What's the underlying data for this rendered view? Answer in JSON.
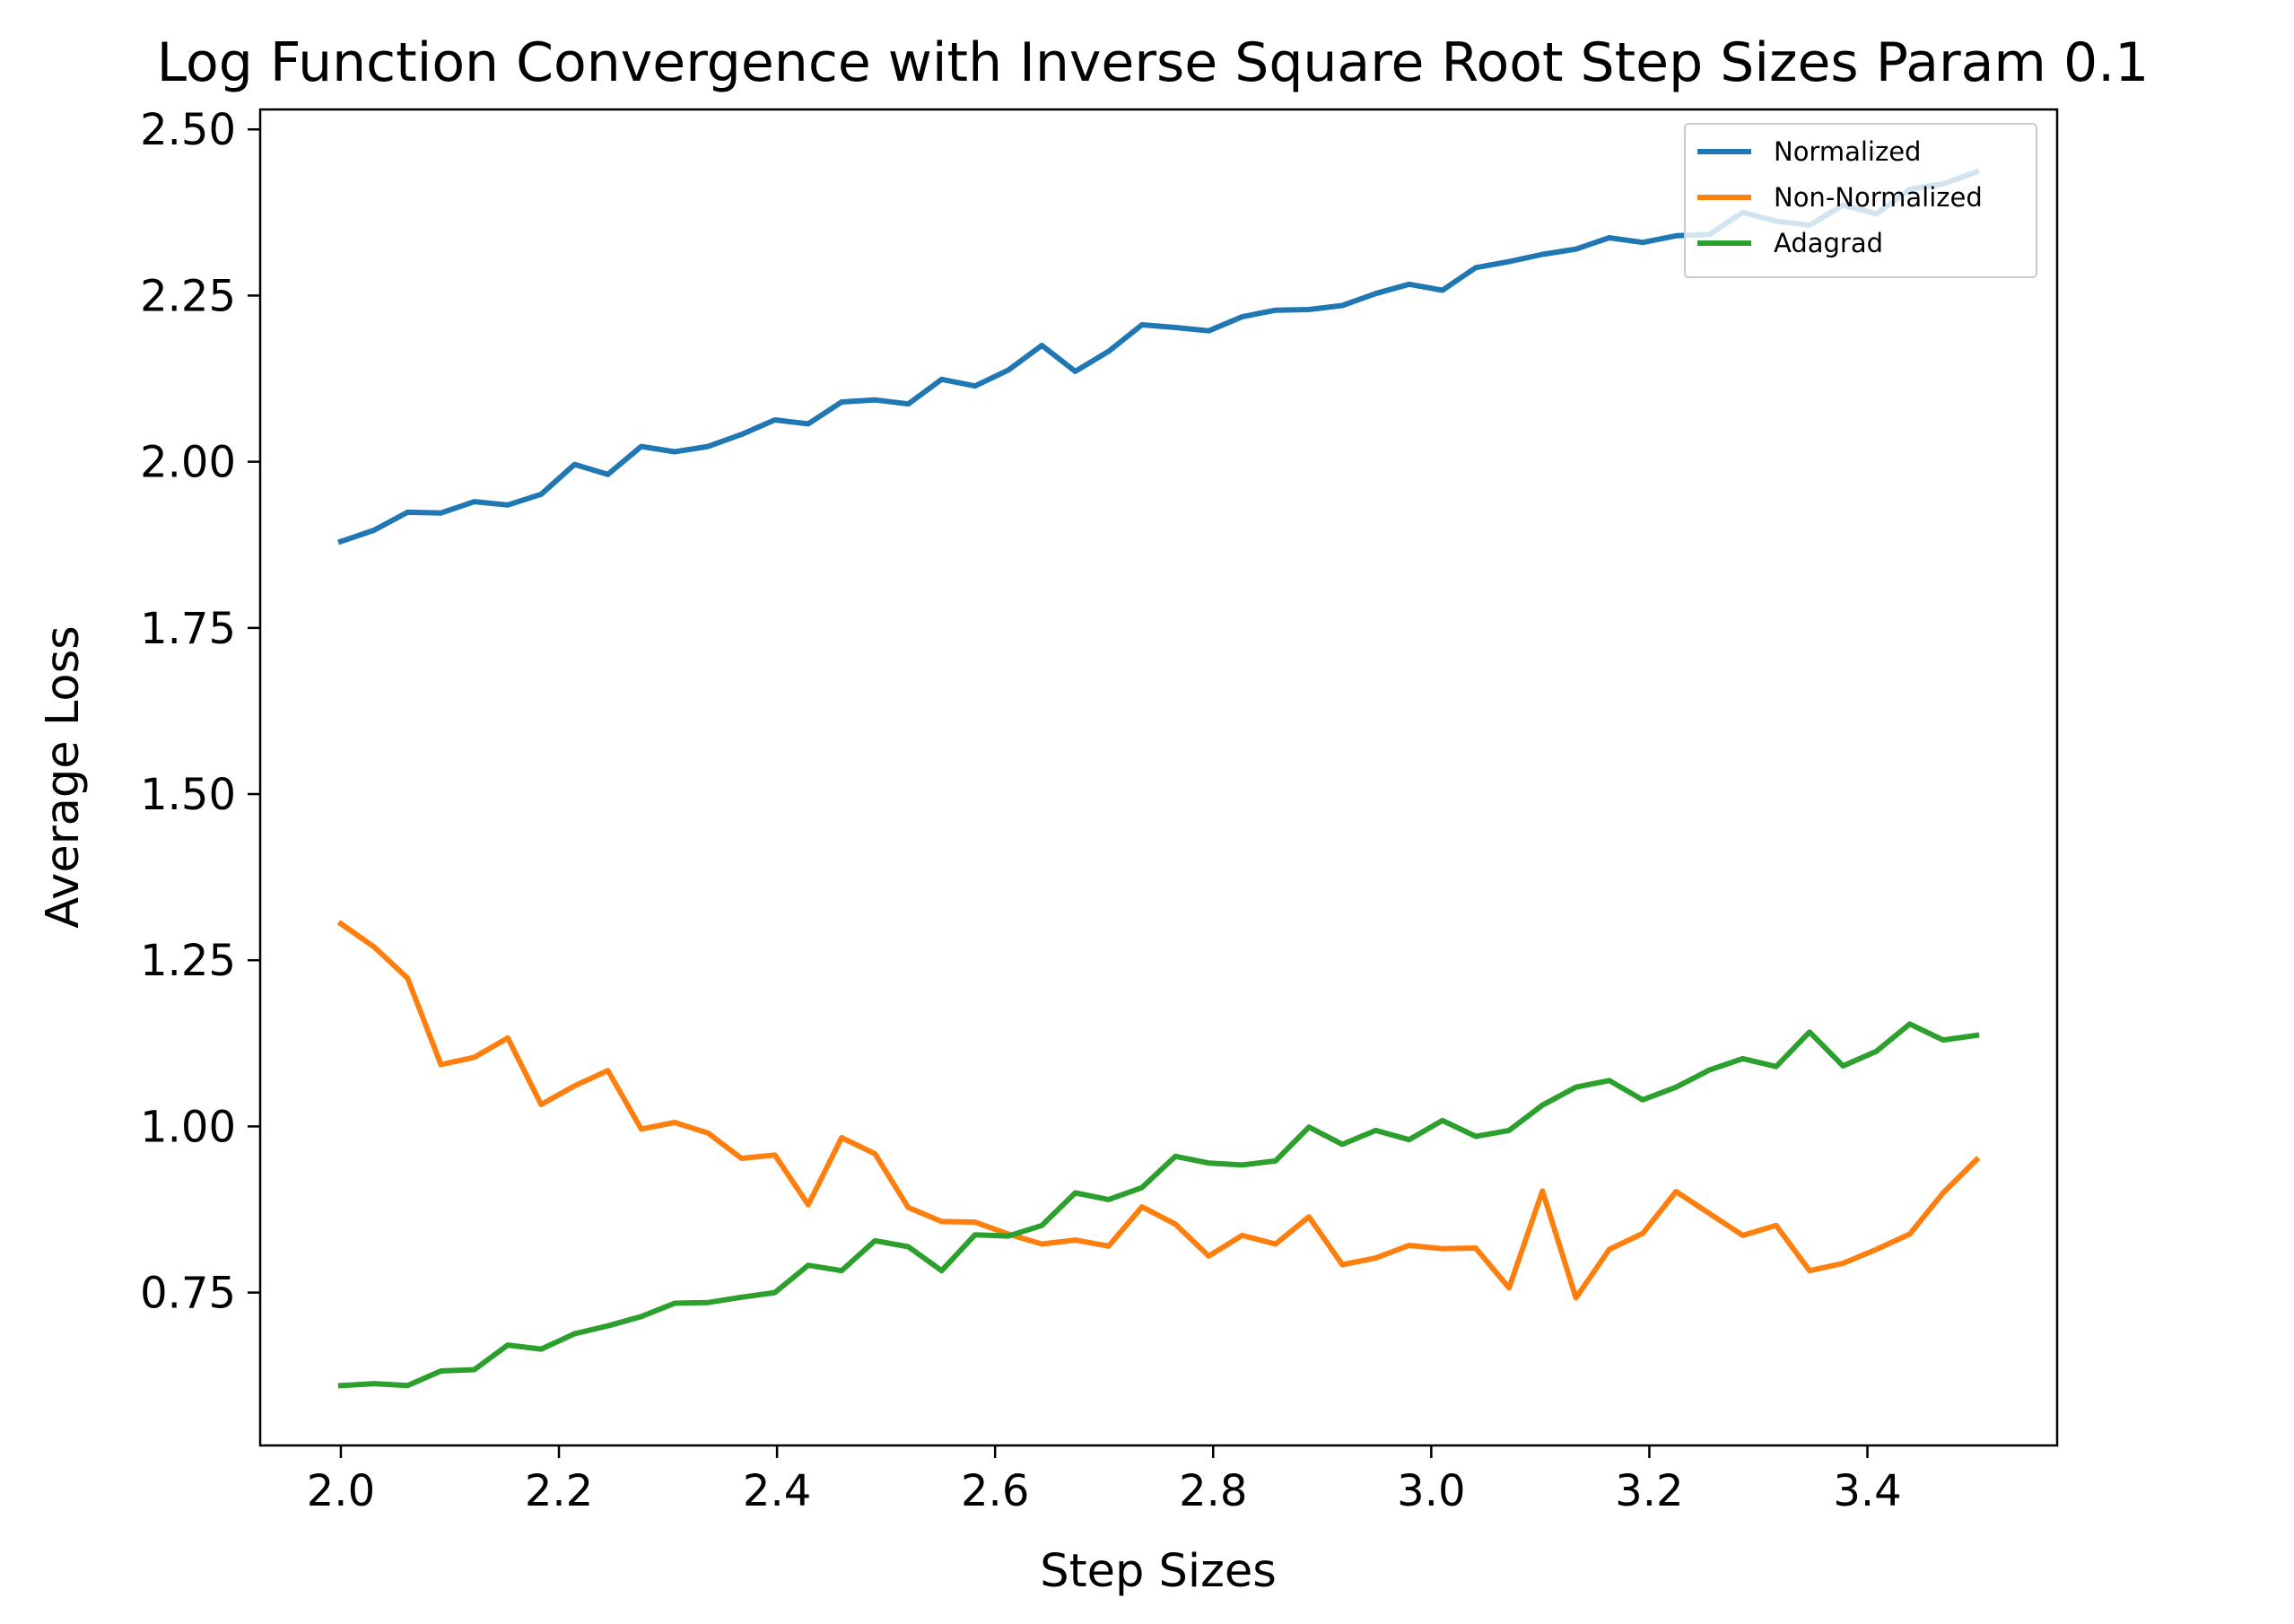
{
  "chart_data": {
    "type": "line",
    "title": "Log Function Convergence with Inverse Square Root Step Sizes Param 0.1",
    "xlabel": "Step Sizes",
    "ylabel": "Average Loss",
    "xlim": [
      1.926,
      3.574
    ],
    "ylim": [
      0.52,
      2.53
    ],
    "xticks": [
      2.0,
      2.2,
      2.4,
      2.6,
      2.8,
      3.0,
      3.2,
      3.4
    ],
    "xtick_labels": [
      "2.0",
      "2.2",
      "2.4",
      "2.6",
      "2.8",
      "3.0",
      "3.2",
      "3.4"
    ],
    "yticks": [
      0.75,
      1.0,
      1.25,
      1.5,
      1.75,
      2.0,
      2.25,
      2.5
    ],
    "ytick_labels": [
      "0.75",
      "1.00",
      "1.25",
      "1.50",
      "1.75",
      "2.00",
      "2.25",
      "2.50"
    ],
    "grid": false,
    "legend_position": "top-right",
    "x": [
      2.0,
      2.0306,
      2.0612,
      2.0918,
      2.1224,
      2.1531,
      2.1837,
      2.2143,
      2.2449,
      2.2755,
      2.3061,
      2.3367,
      2.3673,
      2.398,
      2.4286,
      2.4592,
      2.4898,
      2.5204,
      2.551,
      2.5816,
      2.6122,
      2.6429,
      2.6735,
      2.7041,
      2.7347,
      2.7653,
      2.7959,
      2.8265,
      2.8571,
      2.8878,
      2.9184,
      2.949,
      2.9796,
      3.0102,
      3.0408,
      3.0714,
      3.102,
      3.1327,
      3.1633,
      3.1939,
      3.2245,
      3.2551,
      3.2857,
      3.3163,
      3.3469,
      3.3776,
      3.4082,
      3.4388,
      3.4694,
      3.5
    ],
    "series": [
      {
        "name": "Normalized",
        "color": "#1f77b4",
        "values": [
          1.88,
          1.897,
          1.924,
          1.923,
          1.94,
          1.935,
          1.951,
          1.996,
          1.981,
          2.023,
          2.015,
          2.023,
          2.041,
          2.063,
          2.057,
          2.09,
          2.093,
          2.087,
          2.124,
          2.114,
          2.138,
          2.175,
          2.136,
          2.166,
          2.206,
          2.202,
          2.197,
          2.218,
          2.228,
          2.229,
          2.235,
          2.253,
          2.267,
          2.258,
          2.292,
          2.301,
          2.312,
          2.32,
          2.337,
          2.33,
          2.34,
          2.342,
          2.375,
          2.362,
          2.356,
          2.386,
          2.373,
          2.41,
          2.418,
          2.436
        ]
      },
      {
        "name": "Non-Normalized",
        "color": "#ff7f0e",
        "values": [
          1.305,
          1.27,
          1.223,
          1.093,
          1.104,
          1.133,
          1.033,
          1.061,
          1.084,
          0.996,
          1.006,
          0.99,
          0.952,
          0.957,
          0.882,
          0.983,
          0.959,
          0.878,
          0.857,
          0.856,
          0.838,
          0.823,
          0.829,
          0.82,
          0.879,
          0.853,
          0.805,
          0.836,
          0.823,
          0.864,
          0.792,
          0.802,
          0.821,
          0.816,
          0.817,
          0.757,
          0.903,
          0.742,
          0.815,
          0.839,
          0.902,
          0.869,
          0.836,
          0.851,
          0.783,
          0.794,
          0.815,
          0.838,
          0.9,
          0.95
        ]
      },
      {
        "name": "Adagrad",
        "color": "#2ca02c",
        "values": [
          0.61,
          0.613,
          0.61,
          0.632,
          0.634,
          0.671,
          0.665,
          0.688,
          0.7,
          0.714,
          0.734,
          0.735,
          0.743,
          0.75,
          0.791,
          0.783,
          0.828,
          0.819,
          0.783,
          0.837,
          0.835,
          0.851,
          0.9,
          0.89,
          0.908,
          0.955,
          0.945,
          0.942,
          0.948,
          0.999,
          0.973,
          0.994,
          0.98,
          1.009,
          0.985,
          0.994,
          1.032,
          1.059,
          1.069,
          1.04,
          1.059,
          1.085,
          1.102,
          1.09,
          1.142,
          1.091,
          1.113,
          1.154,
          1.13,
          1.137
        ]
      }
    ]
  }
}
